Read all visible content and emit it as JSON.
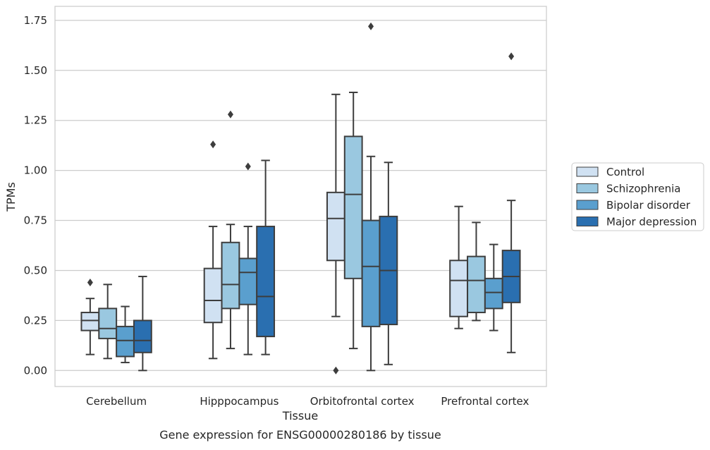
{
  "chart_data": {
    "type": "boxplot",
    "xlabel": "Tissue",
    "ylabel": "TPMs",
    "caption": "Gene expression for ENSG00000280186 by tissue",
    "ylim": [
      -0.08,
      1.82
    ],
    "yticks": [
      0.0,
      0.25,
      0.5,
      0.75,
      1.0,
      1.25,
      1.5,
      1.75
    ],
    "ytick_labels": [
      "0.00",
      "0.25",
      "0.50",
      "0.75",
      "1.00",
      "1.25",
      "1.50",
      "1.75"
    ],
    "grid": "horizontal",
    "legend_position": "right-outside",
    "categories": [
      "Cerebellum",
      "Hipppocampus",
      "Orbitofrontal cortex",
      "Prefrontal cortex"
    ],
    "series": [
      {
        "name": "Control",
        "color": "#d0e1f2",
        "boxes": [
          {
            "whislo": 0.08,
            "q1": 0.2,
            "med": 0.25,
            "q3": 0.29,
            "whishi": 0.36,
            "fliers": [
              0.44
            ]
          },
          {
            "whislo": 0.06,
            "q1": 0.24,
            "med": 0.35,
            "q3": 0.51,
            "whishi": 0.72,
            "fliers": [
              1.13
            ]
          },
          {
            "whislo": 0.27,
            "q1": 0.55,
            "med": 0.76,
            "q3": 0.89,
            "whishi": 1.38,
            "fliers": [
              0.0
            ]
          },
          {
            "whislo": 0.21,
            "q1": 0.27,
            "med": 0.45,
            "q3": 0.55,
            "whishi": 0.82,
            "fliers": []
          }
        ]
      },
      {
        "name": "Schizophrenia",
        "color": "#9ac8e0",
        "boxes": [
          {
            "whislo": 0.06,
            "q1": 0.16,
            "med": 0.21,
            "q3": 0.31,
            "whishi": 0.43,
            "fliers": []
          },
          {
            "whislo": 0.11,
            "q1": 0.31,
            "med": 0.43,
            "q3": 0.64,
            "whishi": 0.73,
            "fliers": [
              1.28
            ]
          },
          {
            "whislo": 0.11,
            "q1": 0.46,
            "med": 0.88,
            "q3": 1.17,
            "whishi": 1.39,
            "fliers": []
          },
          {
            "whislo": 0.25,
            "q1": 0.29,
            "med": 0.45,
            "q3": 0.57,
            "whishi": 0.74,
            "fliers": []
          }
        ]
      },
      {
        "name": "Bipolar disorder",
        "color": "#5a9fce",
        "boxes": [
          {
            "whislo": 0.04,
            "q1": 0.07,
            "med": 0.15,
            "q3": 0.22,
            "whishi": 0.32,
            "fliers": []
          },
          {
            "whislo": 0.08,
            "q1": 0.33,
            "med": 0.49,
            "q3": 0.56,
            "whishi": 0.72,
            "fliers": [
              1.02
            ]
          },
          {
            "whislo": 0.0,
            "q1": 0.22,
            "med": 0.52,
            "q3": 0.75,
            "whishi": 1.07,
            "fliers": [
              1.72
            ]
          },
          {
            "whislo": 0.2,
            "q1": 0.31,
            "med": 0.39,
            "q3": 0.46,
            "whishi": 0.63,
            "fliers": []
          }
        ]
      },
      {
        "name": "Major depression",
        "color": "#2a6fb0",
        "boxes": [
          {
            "whislo": 0.0,
            "q1": 0.09,
            "med": 0.15,
            "q3": 0.25,
            "whishi": 0.47,
            "fliers": []
          },
          {
            "whislo": 0.08,
            "q1": 0.17,
            "med": 0.37,
            "q3": 0.72,
            "whishi": 1.05,
            "fliers": []
          },
          {
            "whislo": 0.03,
            "q1": 0.23,
            "med": 0.5,
            "q3": 0.77,
            "whishi": 1.04,
            "fliers": []
          },
          {
            "whislo": 0.09,
            "q1": 0.34,
            "med": 0.47,
            "q3": 0.6,
            "whishi": 0.85,
            "fliers": [
              1.57
            ]
          }
        ]
      }
    ]
  }
}
